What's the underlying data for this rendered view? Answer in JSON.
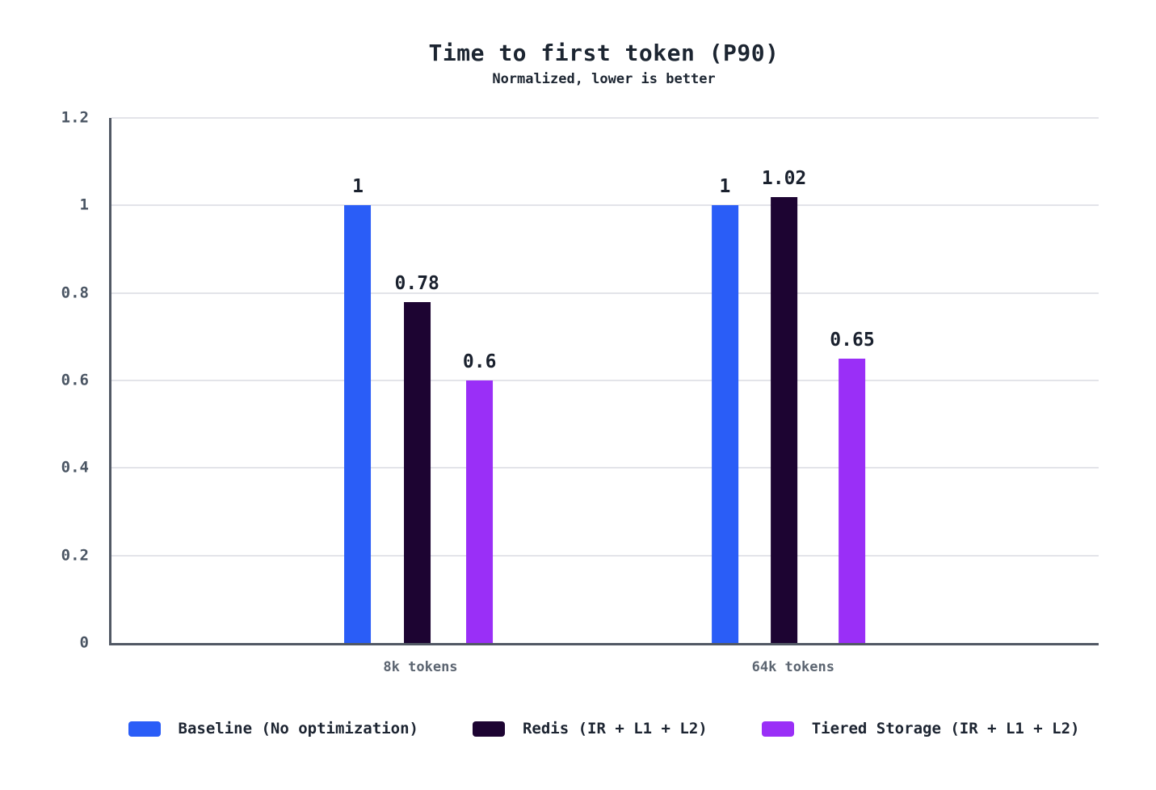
{
  "chart_data": {
    "type": "bar",
    "title": "Time to first token (P90)",
    "subtitle": "Normalized, lower is better",
    "categories": [
      "8k tokens",
      "64k tokens"
    ],
    "series": [
      {
        "name": "Baseline (No optimization)",
        "color": "#2a5df7",
        "values": [
          1,
          1
        ],
        "value_labels": [
          "1",
          "1"
        ]
      },
      {
        "name": "Redis (IR + L1 + L2)",
        "color": "#1d0432",
        "values": [
          0.78,
          1.02
        ],
        "value_labels": [
          "0.78",
          "1.02"
        ]
      },
      {
        "name": "Tiered Storage (IR + L1 + L2)",
        "color": "#9a2ff7",
        "values": [
          0.6,
          0.65
        ],
        "value_labels": [
          "0.6",
          "0.65"
        ]
      }
    ],
    "xlabel": "",
    "ylabel": "",
    "ylim": [
      0,
      1.2
    ],
    "yticks": [
      {
        "value": 0,
        "label": "0"
      },
      {
        "value": 0.2,
        "label": "0.2"
      },
      {
        "value": 0.4,
        "label": "0.4"
      },
      {
        "value": 0.6,
        "label": "0.6"
      },
      {
        "value": 0.8,
        "label": "0.8"
      },
      {
        "value": 1,
        "label": "1"
      },
      {
        "value": 1.2,
        "label": "1.2"
      }
    ],
    "grid": true,
    "legend_position": "bottom",
    "value_labels_shown": true,
    "layout_hints": {
      "group_center_fractions": [
        0.313,
        0.6905
      ]
    }
  }
}
